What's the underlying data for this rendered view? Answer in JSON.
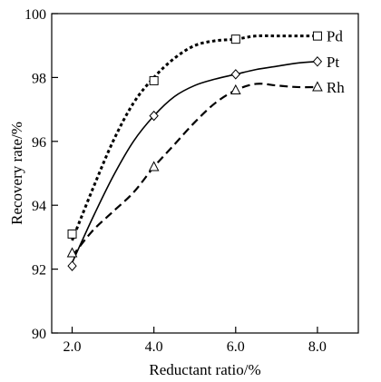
{
  "chart_data": {
    "type": "line",
    "title": "",
    "xlabel": "Reductant ratio/%",
    "ylabel": "Recovery rate/%",
    "xlim": [
      1.5,
      9.0
    ],
    "ylim": [
      90,
      100
    ],
    "x_ticks": [
      "2.0",
      "4.0",
      "6.0",
      "8.0"
    ],
    "x_tick_values": [
      2,
      4,
      6,
      8
    ],
    "y_ticks": [
      "90",
      "92",
      "94",
      "96",
      "98",
      "100"
    ],
    "y_tick_values": [
      90,
      92,
      94,
      96,
      98,
      100
    ],
    "grid": false,
    "legend": "inline labels at right end of each series",
    "series": [
      {
        "name": "Pd",
        "marker": "square",
        "line_style": "dotted",
        "x": [
          2,
          4,
          6,
          8
        ],
        "values": [
          93.1,
          97.9,
          99.2,
          99.3
        ],
        "curve_x": [
          2.0,
          2.5,
          3.0,
          3.5,
          4.0,
          4.5,
          5.0,
          5.5,
          6.0,
          6.5,
          7.0,
          7.5,
          8.0
        ],
        "curve_y": [
          92.9,
          94.5,
          96.0,
          97.2,
          98.0,
          98.6,
          99.0,
          99.15,
          99.2,
          99.3,
          99.3,
          99.3,
          99.3
        ]
      },
      {
        "name": "Pt",
        "marker": "diamond",
        "line_style": "solid",
        "x": [
          2,
          4,
          6,
          8
        ],
        "values": [
          92.1,
          96.8,
          98.1,
          98.5
        ],
        "curve_x": [
          2.0,
          2.5,
          3.0,
          3.5,
          4.0,
          4.5,
          5.0,
          5.5,
          6.0,
          6.5,
          7.0,
          7.5,
          8.0
        ],
        "curve_y": [
          92.2,
          93.6,
          94.9,
          96.0,
          96.8,
          97.4,
          97.75,
          97.95,
          98.1,
          98.25,
          98.35,
          98.45,
          98.5
        ]
      },
      {
        "name": "Rh",
        "marker": "triangle",
        "line_style": "dashed",
        "x": [
          2,
          4,
          6,
          8
        ],
        "values": [
          92.5,
          95.2,
          97.6,
          97.7
        ],
        "curve_x": [
          2.0,
          2.5,
          3.0,
          3.5,
          4.0,
          4.5,
          5.0,
          5.5,
          6.0,
          6.5,
          7.0,
          7.5,
          8.0
        ],
        "curve_y": [
          92.4,
          93.2,
          93.8,
          94.4,
          95.2,
          95.9,
          96.6,
          97.2,
          97.6,
          97.8,
          97.75,
          97.7,
          97.7
        ]
      }
    ]
  }
}
